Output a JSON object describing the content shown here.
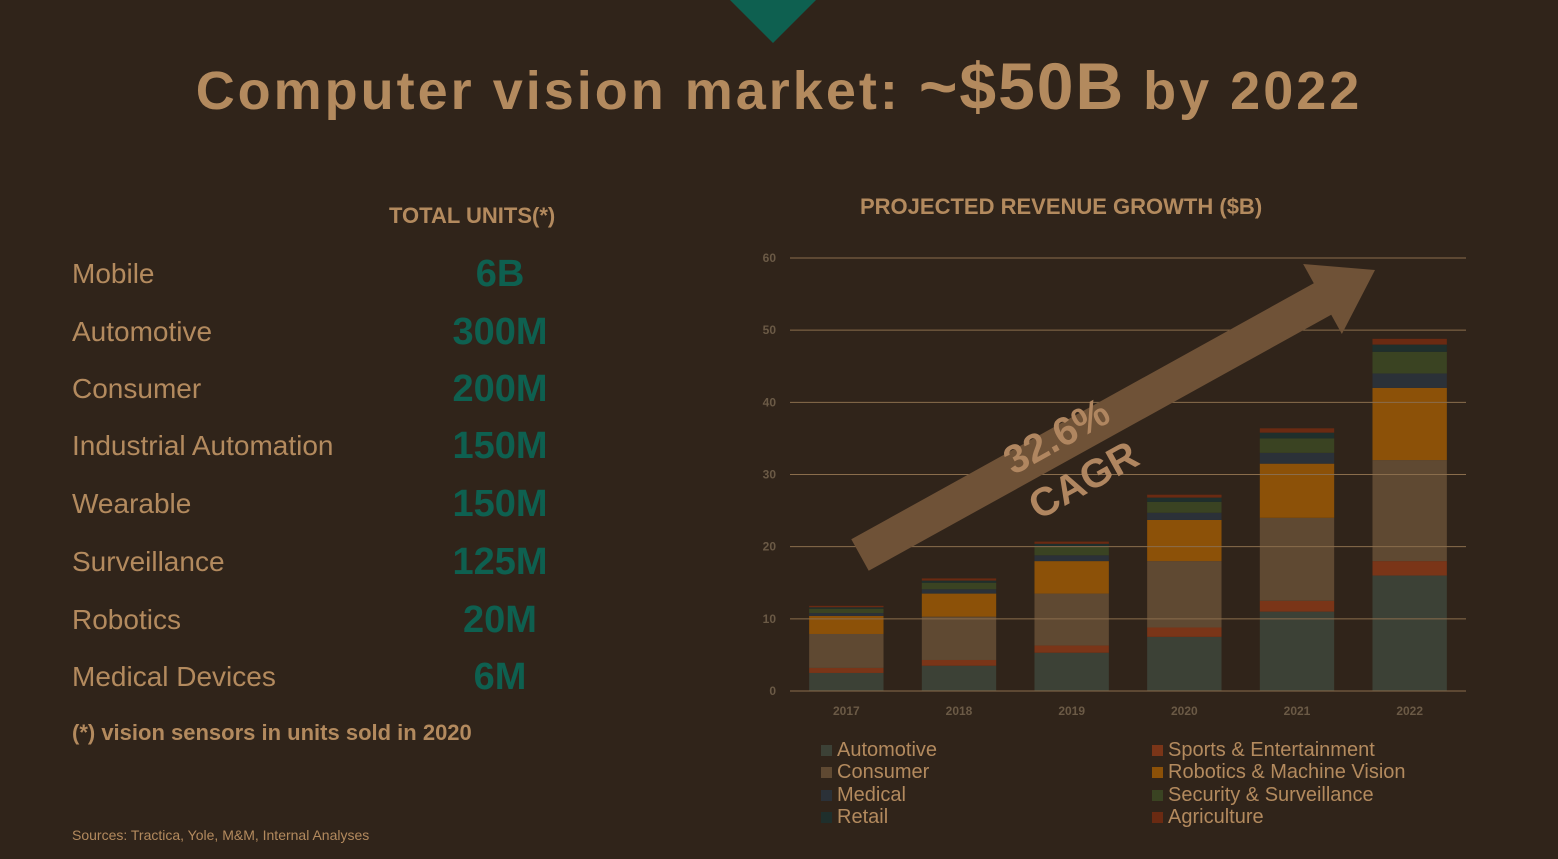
{
  "slide": {
    "title_part1": "Computer vision market: ",
    "title_part2": "~$50B",
    "title_part3": " by 2022",
    "units_header": "TOTAL UNITS(*)",
    "units": [
      {
        "label": "Mobile",
        "value": "6B"
      },
      {
        "label": "Automotive",
        "value": "300M"
      },
      {
        "label": "Consumer",
        "value": "200M"
      },
      {
        "label": "Industrial Automation",
        "value": "150M"
      },
      {
        "label": "Wearable",
        "value": "150M"
      },
      {
        "label": "Surveillance",
        "value": "125M"
      },
      {
        "label": "Robotics",
        "value": "20M"
      },
      {
        "label": "Medical Devices",
        "value": "6M"
      }
    ],
    "footnote": "(*) vision sensors in units sold in 2020",
    "sources": "Sources: Tractica, Yole, M&M, Internal Analyses",
    "chart_title": "PROJECTED REVENUE GROWTH ($B)",
    "arrow_label_line1": "32.6%",
    "arrow_label_line2": "CAGR"
  },
  "chart_data": {
    "type": "bar",
    "stacked": true,
    "title": "PROJECTED REVENUE GROWTH ($B)",
    "categories": [
      "2017",
      "2018",
      "2019",
      "2020",
      "2021",
      "2022"
    ],
    "ylim": [
      0,
      60
    ],
    "yticks": [
      0,
      10,
      20,
      30,
      40,
      50,
      60
    ],
    "grid": true,
    "legend_position": "bottom",
    "annotation": "32.6% CAGR",
    "series": [
      {
        "name": "Automotive",
        "color": "#3c4136",
        "values": [
          2.5,
          3.5,
          5.3,
          7.5,
          11,
          16
        ]
      },
      {
        "name": "Sports & Entertainment",
        "color": "#7a3518",
        "values": [
          0.7,
          0.8,
          1.0,
          1.3,
          1.5,
          2
        ]
      },
      {
        "name": "Consumer",
        "color": "#5f4932",
        "values": [
          4.7,
          6.0,
          7.2,
          9.2,
          11.5,
          14
        ]
      },
      {
        "name": "Robotics & Machine Vision",
        "color": "#8c5108",
        "values": [
          2.5,
          3.2,
          4.5,
          5.7,
          7.5,
          10
        ]
      },
      {
        "name": "Medical",
        "color": "#2b3138",
        "values": [
          0.4,
          0.6,
          0.8,
          1.0,
          1.5,
          2
        ]
      },
      {
        "name": "Security & Surveillance",
        "color": "#3a4322",
        "values": [
          0.6,
          0.9,
          1.2,
          1.5,
          2.0,
          3
        ]
      },
      {
        "name": "Retail",
        "color": "#1f2f2c",
        "values": [
          0.2,
          0.3,
          0.4,
          0.6,
          0.8,
          1
        ]
      },
      {
        "name": "Agriculture",
        "color": "#6a2a12",
        "values": [
          0.2,
          0.3,
          0.3,
          0.4,
          0.6,
          0.8
        ]
      }
    ]
  },
  "legend": [
    {
      "name": "Automotive",
      "color": "#3c4136"
    },
    {
      "name": "Consumer",
      "color": "#5f4932"
    },
    {
      "name": "Medical",
      "color": "#2b3138"
    },
    {
      "name": "Retail",
      "color": "#1f2f2c"
    },
    {
      "name": "Sports & Entertainment",
      "color": "#7a3518"
    },
    {
      "name": "Robotics & Machine Vision",
      "color": "#8c5108"
    },
    {
      "name": "Security & Surveillance",
      "color": "#3a4322"
    },
    {
      "name": "Agriculture",
      "color": "#6a2a12"
    }
  ]
}
